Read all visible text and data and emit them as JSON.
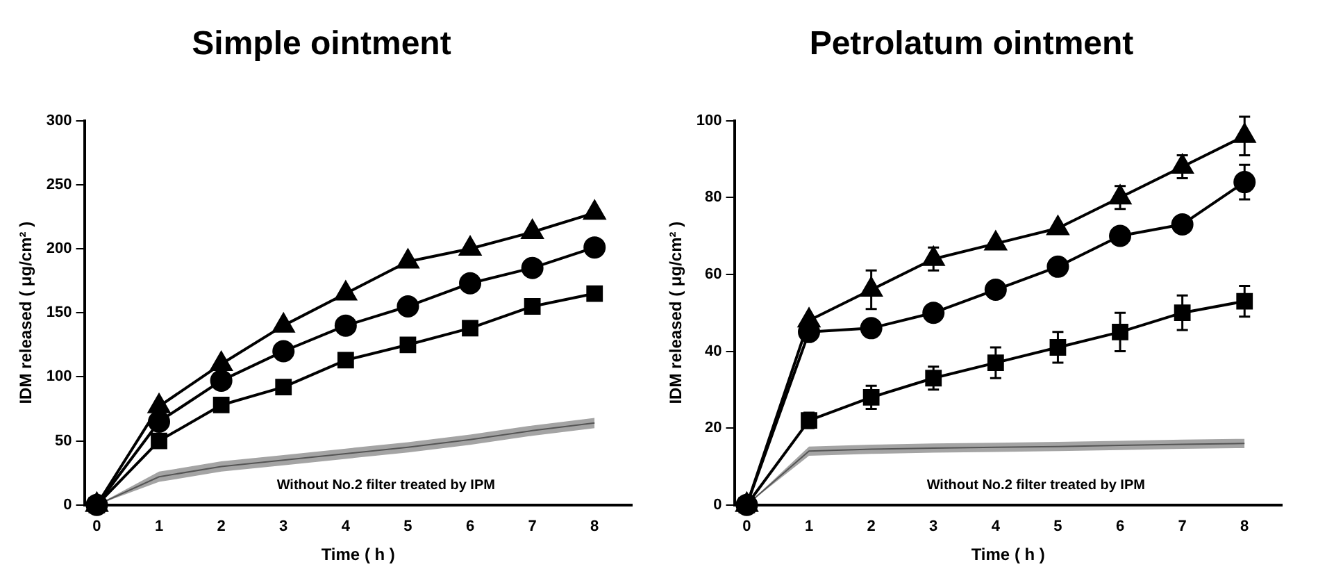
{
  "chart_data": [
    {
      "type": "line",
      "title": "Simple ointment",
      "xlabel": "Time ( h )",
      "ylabel": "IDM released ( μg/cm² )",
      "x": [
        0,
        1,
        2,
        3,
        4,
        5,
        6,
        7,
        8
      ],
      "xlim": [
        -0.2,
        8.6
      ],
      "xticks": [
        0,
        1,
        2,
        3,
        4,
        5,
        6,
        7,
        8
      ],
      "ylim": [
        0,
        300
      ],
      "yticks": [
        0,
        50,
        100,
        150,
        200,
        250,
        300
      ],
      "grid": false,
      "legend": false,
      "series": [
        {
          "color": "#000000",
          "marker": "triangle",
          "values": [
            0,
            77,
            110,
            140,
            165,
            190,
            200,
            213,
            228
          ]
        },
        {
          "color": "#000000",
          "marker": "circle",
          "values": [
            0,
            65,
            97,
            120,
            140,
            155,
            173,
            185,
            201
          ]
        },
        {
          "color": "#000000",
          "marker": "square",
          "values": [
            0,
            50,
            78,
            92,
            113,
            125,
            138,
            155,
            165
          ]
        },
        {
          "color": "#555555",
          "marker": "none",
          "values": [
            0,
            22,
            30,
            35,
            40,
            45,
            51,
            58,
            64
          ],
          "lower": [
            0,
            18,
            26,
            31,
            36,
            41,
            47,
            54,
            60
          ],
          "upper": [
            0,
            26,
            34,
            39,
            44,
            49,
            55,
            62,
            68
          ]
        }
      ],
      "annotations": [
        "Without No.2 filter treated by IPM"
      ]
    },
    {
      "type": "line",
      "title": "Petrolatum ointment",
      "xlabel": "Time ( h )",
      "ylabel": "IDM released ( μg/cm² )",
      "x": [
        0,
        1,
        2,
        3,
        4,
        5,
        6,
        7,
        8
      ],
      "xlim": [
        -0.2,
        8.6
      ],
      "xticks": [
        0,
        1,
        2,
        3,
        4,
        5,
        6,
        7,
        8
      ],
      "ylim": [
        0,
        100
      ],
      "yticks": [
        0,
        20,
        40,
        60,
        80,
        100
      ],
      "grid": false,
      "legend": false,
      "series": [
        {
          "color": "#000000",
          "marker": "triangle",
          "values": [
            0,
            48,
            56,
            64,
            68,
            72,
            80,
            88,
            96
          ],
          "errors": [
            null,
            null,
            5,
            3,
            null,
            null,
            3,
            3,
            5
          ]
        },
        {
          "color": "#000000",
          "marker": "circle",
          "values": [
            0,
            45,
            46,
            50,
            56,
            62,
            70,
            73,
            84
          ],
          "errors": [
            null,
            null,
            null,
            null,
            null,
            null,
            null,
            null,
            4.5
          ]
        },
        {
          "color": "#000000",
          "marker": "square",
          "values": [
            0,
            22,
            28,
            33,
            37,
            41,
            45,
            50,
            53
          ],
          "errors": [
            null,
            2,
            3,
            3,
            4,
            4,
            5,
            4.5,
            4
          ]
        },
        {
          "color": "#555555",
          "marker": "none",
          "values": [
            0,
            14,
            14.5,
            14.8,
            15,
            15.2,
            15.5,
            15.8,
            16
          ],
          "lower": [
            0,
            12.8,
            13.3,
            13.6,
            13.8,
            14,
            14.3,
            14.6,
            14.8
          ],
          "upper": [
            0,
            15.2,
            15.7,
            16,
            16.2,
            16.4,
            16.7,
            17,
            17.2
          ]
        }
      ],
      "annotations": [
        "Without No.2 filter treated by IPM"
      ]
    }
  ]
}
